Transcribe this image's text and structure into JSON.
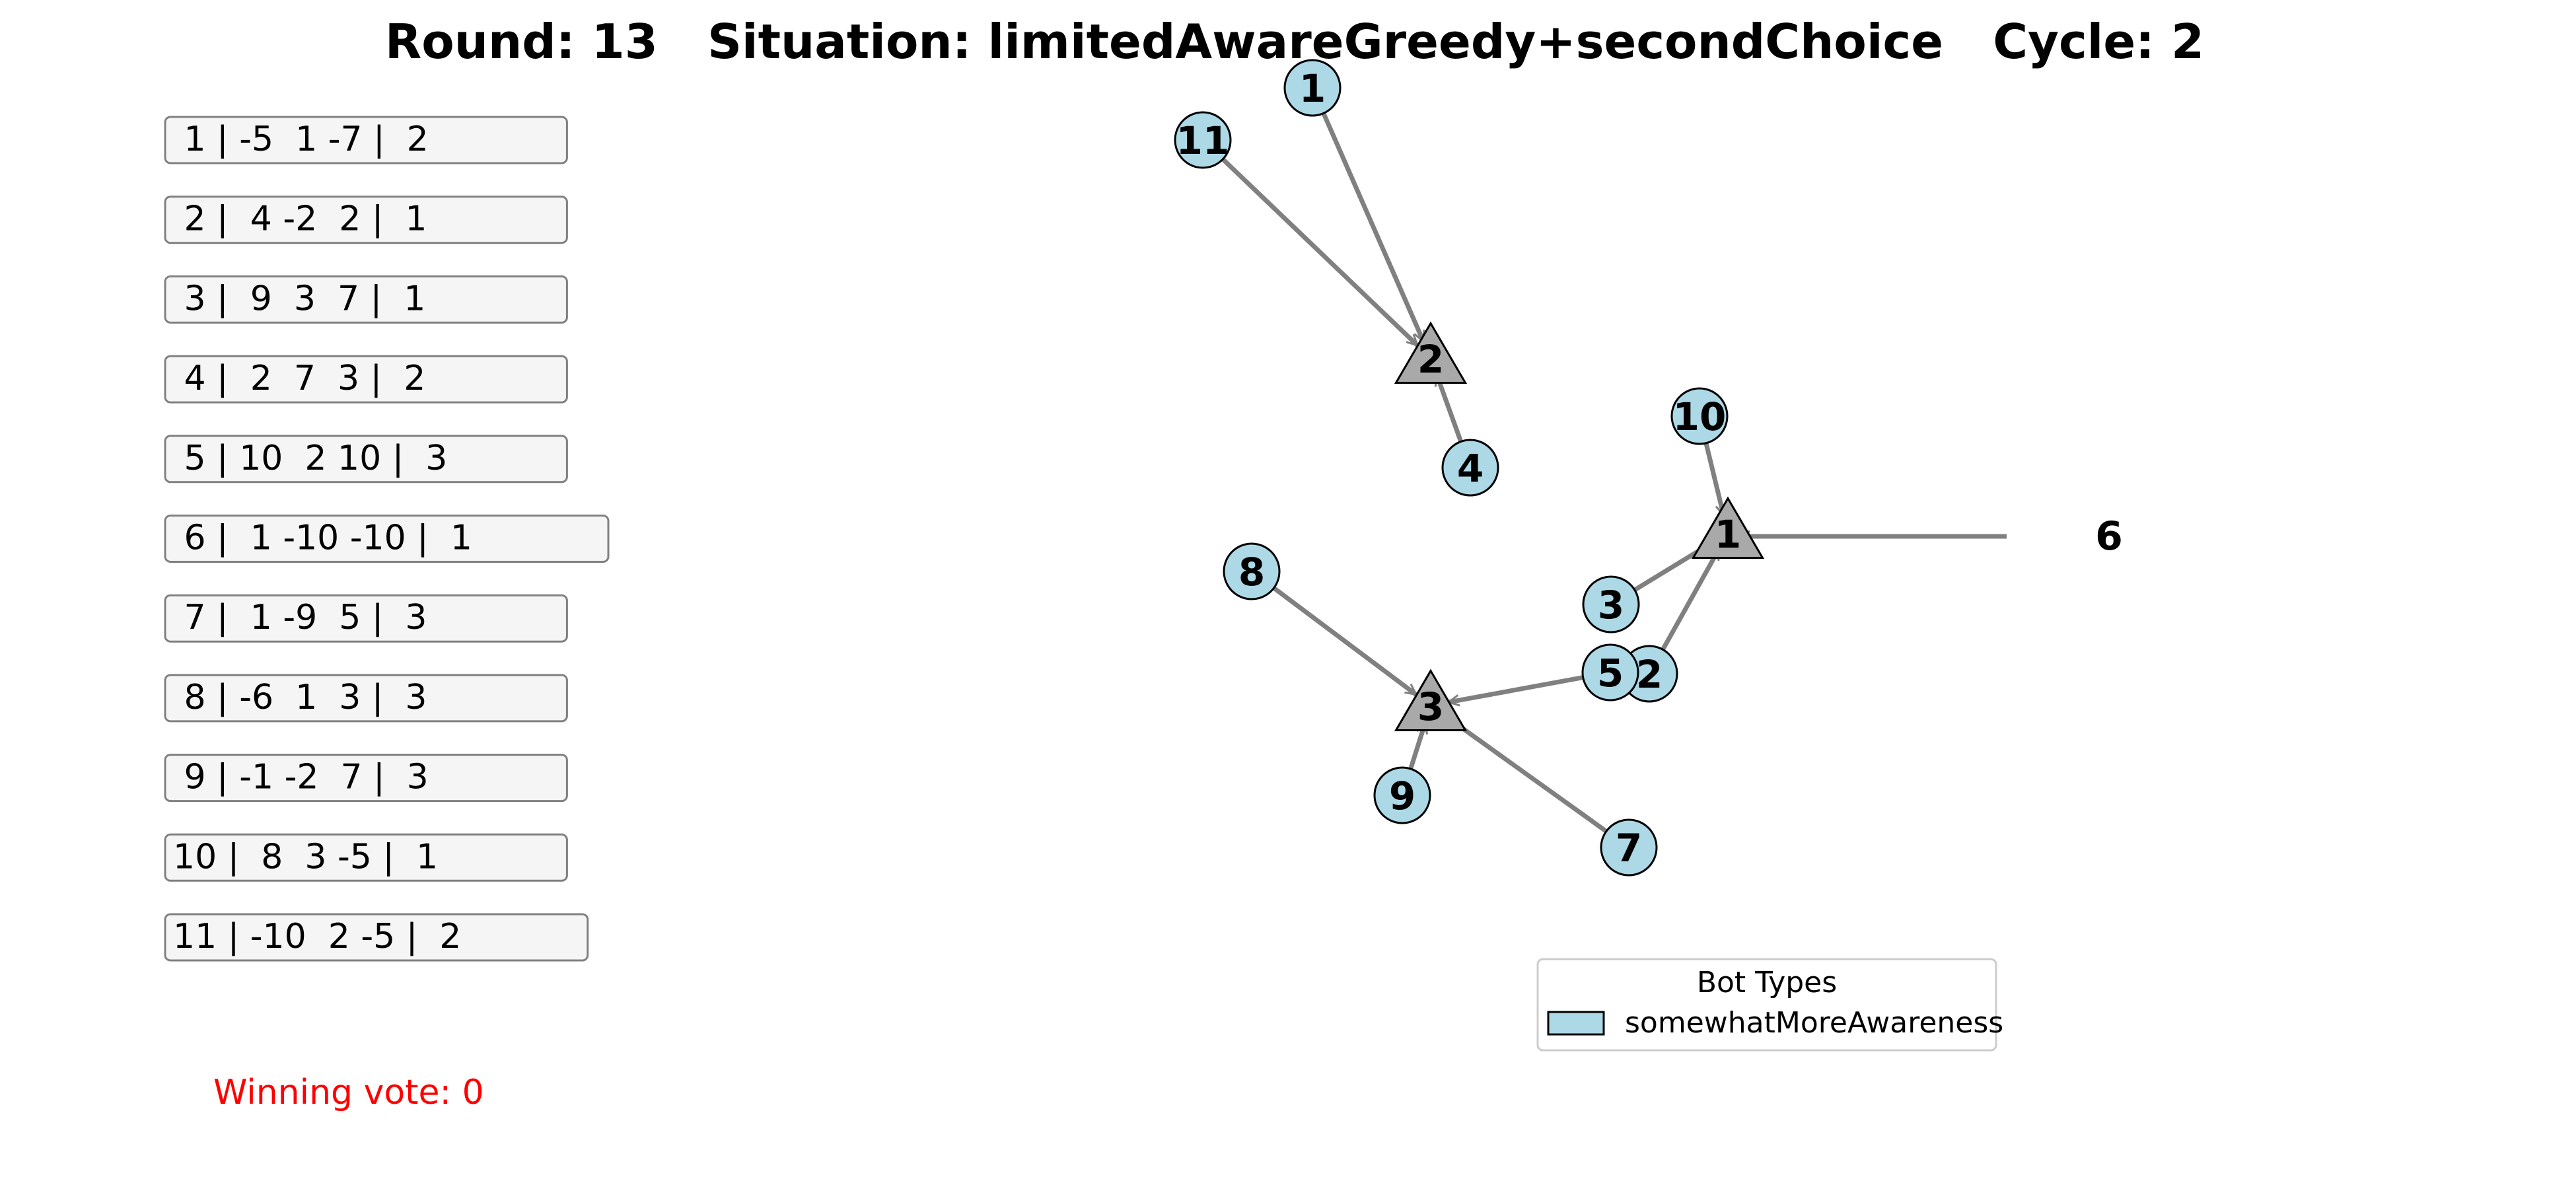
{
  "title": {
    "text": "Round: 13   Situation: limitedAwareGreedy+secondChoice   Cycle: 2"
  },
  "preference_rows": [
    " 1 | -5  1 -7 |  2",
    " 2 |  4 -2  2 |  1",
    " 3 |  9  3  7 |  1",
    " 4 |  2  7  3 |  2",
    " 5 | 10  2 10 |  3",
    " 6 |  1 -10 -10 |  1",
    " 7 |  1 -9  5 |  3",
    " 8 | -6  1  3 |  3",
    " 9 | -1 -2  7 |  3",
    "10 |  8  3 -5 |  1",
    "11 | -10  2 -5 |  2"
  ],
  "winning_vote": "Winning vote: 0",
  "graph": {
    "candidates": [
      {
        "id": "2",
        "label": "2"
      },
      {
        "id": "1",
        "label": "1"
      },
      {
        "id": "3",
        "label": "3"
      }
    ],
    "voters": [
      {
        "id": "1",
        "label": "1",
        "vote": "2"
      },
      {
        "id": "11",
        "label": "11",
        "vote": "2"
      },
      {
        "id": "4",
        "label": "4",
        "vote": "2"
      },
      {
        "id": "10",
        "label": "10",
        "vote": "1"
      },
      {
        "id": "3",
        "label": "3",
        "vote": "1"
      },
      {
        "id": "2",
        "label": "2",
        "vote": "1"
      },
      {
        "id": "8",
        "label": "8",
        "vote": "3"
      },
      {
        "id": "5",
        "label": "5",
        "vote": "3"
      },
      {
        "id": "9",
        "label": "9",
        "vote": "3"
      },
      {
        "id": "7",
        "label": "7",
        "vote": "3"
      }
    ],
    "outside_voter": {
      "id": "6",
      "label": "6",
      "vote": "1"
    }
  },
  "legend": {
    "title": "Bot Types",
    "items": [
      {
        "label": "somewhatMoreAwareness",
        "color": "#add8e6"
      }
    ]
  },
  "colors": {
    "voter_fill": "#add8e6",
    "candidate_fill": "#a9a9a9",
    "edge": "#808080",
    "row_box_fill": "#f5f5f5",
    "row_box_stroke": "#808080",
    "winning_text": "#ff0000"
  }
}
